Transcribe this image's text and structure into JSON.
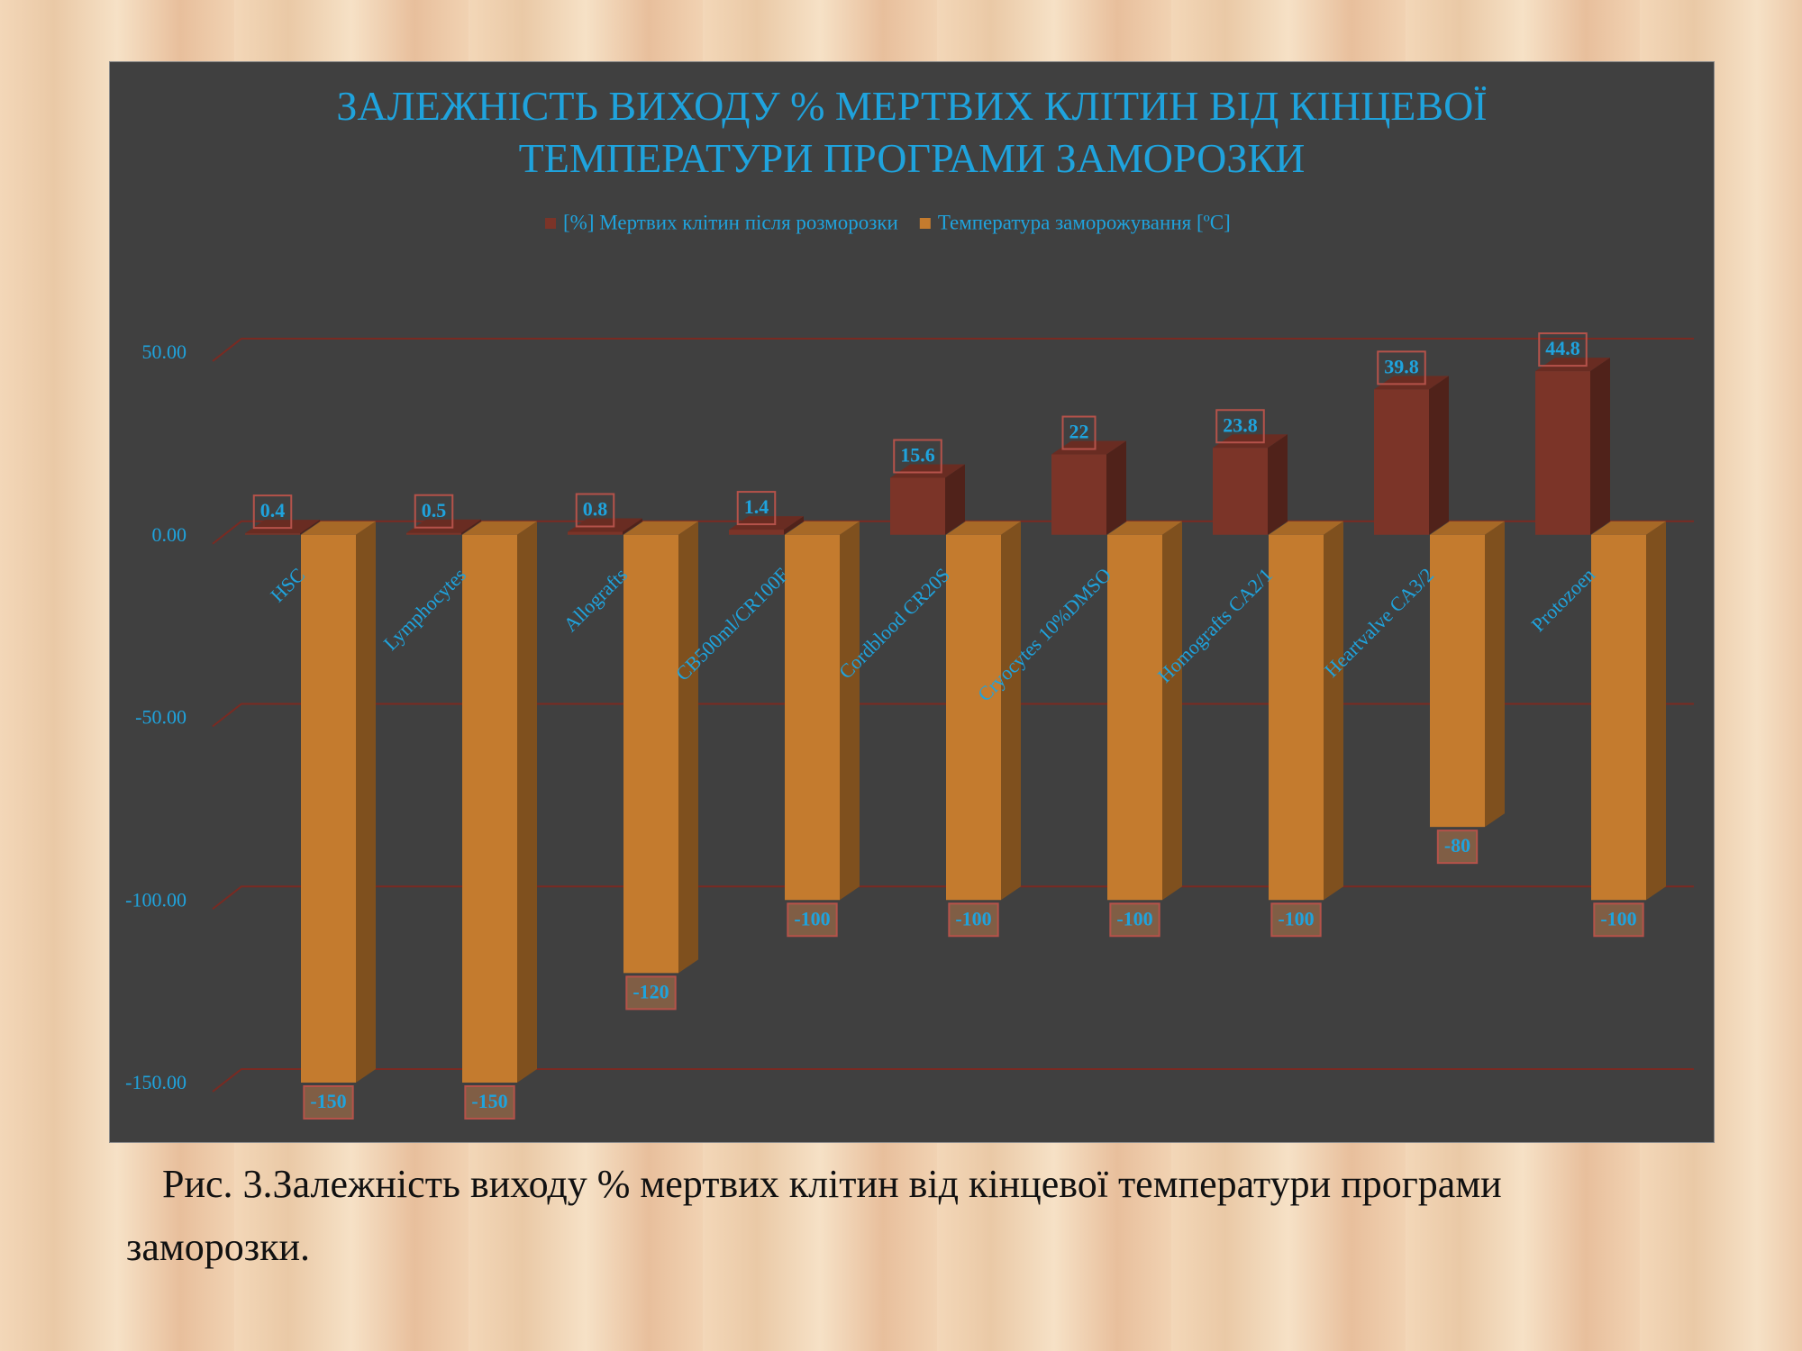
{
  "chart_data": {
    "type": "bar3d",
    "title": "ЗАЛЕЖНІСТЬ ВИХОДУ % МЕРТВИХ КЛІТИН ВІД КІНЦЕВОЇ ТЕМПЕРАТУРИ ПРОГРАМИ ЗАМОРОЗКИ",
    "categories": [
      "HSC",
      "Lymphocytes",
      "Allografts",
      "CB500ml/CR100F",
      "Cordblood CR20S",
      "Cryocytes 10%DMSO",
      "Homografts CA2/1",
      "Heartvalve CA3/2",
      "Protozoen"
    ],
    "series": [
      {
        "name": "[%] Мертвих клітин після розморозки",
        "color": "#7b3428",
        "values": [
          0.4,
          0.5,
          0.8,
          1.4,
          15.6,
          22,
          23.8,
          39.8,
          44.8
        ]
      },
      {
        "name": "Температура заморожування [ºC]",
        "color": "#c47b2e",
        "values": [
          -150,
          -150,
          -120,
          -100,
          -100,
          -100,
          -100,
          -80,
          -100
        ]
      }
    ],
    "ylim": [
      -150,
      50
    ],
    "yticks": [
      {
        "value": 50,
        "label": "50.00"
      },
      {
        "value": 0,
        "label": "0.00"
      },
      {
        "value": -50,
        "label": "-50.00"
      },
      {
        "value": -100,
        "label": "-100.00"
      },
      {
        "value": -150,
        "label": "-150.00"
      }
    ],
    "grid": true,
    "legend": "top"
  },
  "caption": "Рис. 3.Залежність виходу % мертвих клітин від кінцевої температури програми заморозки."
}
